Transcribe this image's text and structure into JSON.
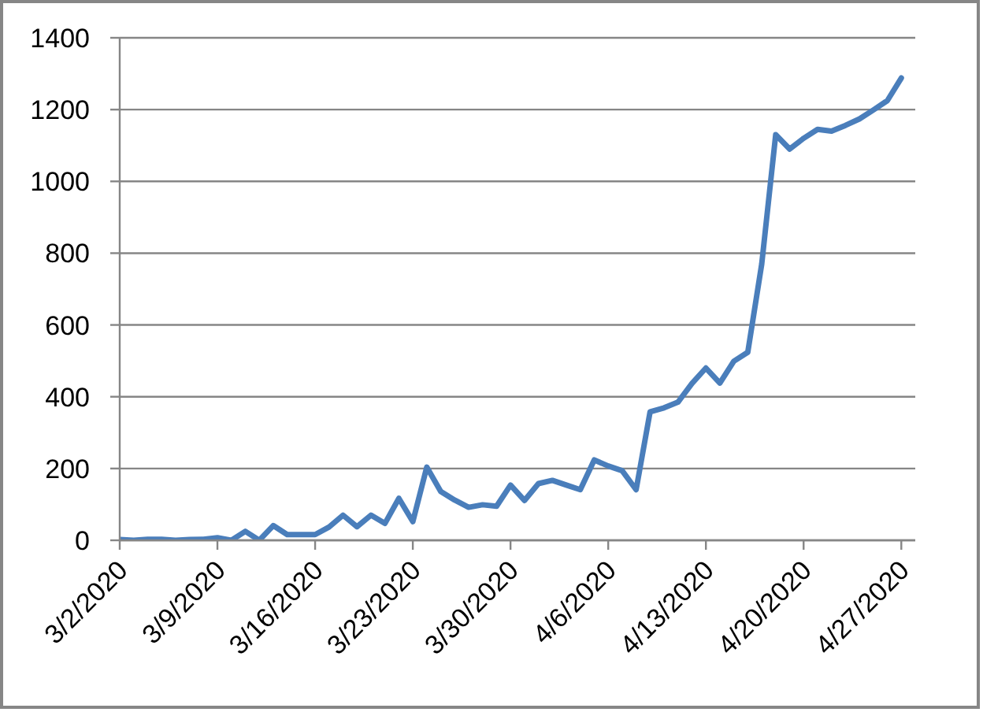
{
  "chart_data": {
    "type": "line",
    "x": [
      "2020-03-02",
      "2020-03-03",
      "2020-03-04",
      "2020-03-05",
      "2020-03-06",
      "2020-03-07",
      "2020-03-08",
      "2020-03-09",
      "2020-03-10",
      "2020-03-11",
      "2020-03-12",
      "2020-03-13",
      "2020-03-14",
      "2020-03-15",
      "2020-03-16",
      "2020-03-17",
      "2020-03-18",
      "2020-03-19",
      "2020-03-20",
      "2020-03-21",
      "2020-03-22",
      "2020-03-23",
      "2020-03-24",
      "2020-03-25",
      "2020-03-26",
      "2020-03-27",
      "2020-03-28",
      "2020-03-29",
      "2020-03-30",
      "2020-03-31",
      "2020-04-01",
      "2020-04-02",
      "2020-04-03",
      "2020-04-04",
      "2020-04-05",
      "2020-04-06",
      "2020-04-07",
      "2020-04-08",
      "2020-04-09",
      "2020-04-10",
      "2020-04-11",
      "2020-04-12",
      "2020-04-13",
      "2020-04-14",
      "2020-04-15",
      "2020-04-16",
      "2020-04-17",
      "2020-04-18",
      "2020-04-19",
      "2020-04-20",
      "2020-04-21",
      "2020-04-22",
      "2020-04-23",
      "2020-04-24",
      "2020-04-25",
      "2020-04-26",
      "2020-04-27"
    ],
    "values": [
      2,
      0,
      3,
      3,
      0,
      2,
      3,
      7,
      0,
      25,
      0,
      41,
      16,
      16,
      16,
      37,
      70,
      38,
      70,
      47,
      117,
      52,
      204,
      136,
      112,
      92,
      99,
      95,
      154,
      111,
      158,
      167,
      154,
      141,
      224,
      207,
      194,
      141,
      358,
      369,
      385,
      437,
      480,
      438,
      499,
      524,
      770,
      1130,
      1090,
      1120,
      1145,
      1140,
      1156,
      1174,
      1199,
      1225,
      1288
    ],
    "color": "#4a7ebb",
    "xlim": [
      "2020-03-02",
      "2020-04-28"
    ],
    "xticks": [
      {
        "value": "2020-03-02",
        "label": "3/2/2020"
      },
      {
        "value": "2020-03-09",
        "label": "3/9/2020"
      },
      {
        "value": "2020-03-16",
        "label": "3/16/2020"
      },
      {
        "value": "2020-03-23",
        "label": "3/23/2020"
      },
      {
        "value": "2020-03-30",
        "label": "3/30/2020"
      },
      {
        "value": "2020-04-06",
        "label": "4/6/2020"
      },
      {
        "value": "2020-04-13",
        "label": "4/13/2020"
      },
      {
        "value": "2020-04-20",
        "label": "4/20/2020"
      },
      {
        "value": "2020-04-27",
        "label": "4/27/2020"
      }
    ],
    "ylim": [
      0,
      1400
    ],
    "yticks": [
      0,
      200,
      400,
      600,
      800,
      1000,
      1200,
      1400
    ],
    "grid": "y"
  }
}
